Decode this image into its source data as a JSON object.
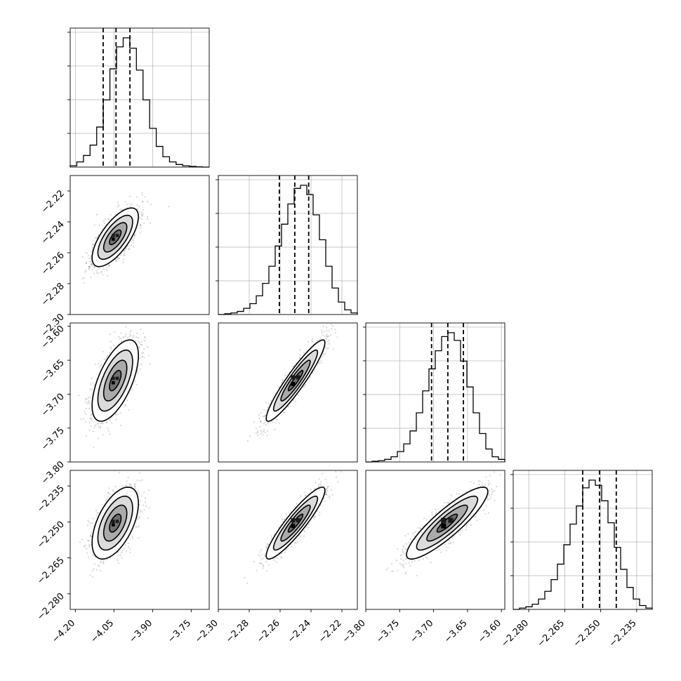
{
  "chart_data": {
    "type": "corner",
    "grid": true,
    "parameters": [
      {
        "range": [
          -4.22,
          -3.68
        ],
        "ticks": [
          -4.2,
          -4.05,
          -3.9,
          -3.75
        ],
        "tick_labels": [
          "−4.20",
          "−4.05",
          "−3.90",
          "−3.75"
        ],
        "quantiles": [
          -4.092,
          -4.042,
          -3.988
        ],
        "hist_bins": [
          0.01,
          0.04,
          0.09,
          0.17,
          0.31,
          0.52,
          0.76,
          0.93,
          1.0,
          0.92,
          0.75,
          0.52,
          0.3,
          0.16,
          0.08,
          0.04,
          0.02,
          0.01,
          0.005,
          0.002,
          0.0
        ]
      },
      {
        "range": [
          -2.3,
          -2.21
        ],
        "ticks": [
          -2.3,
          -2.28,
          -2.26,
          -2.24,
          -2.22
        ],
        "tick_labels": [
          "−2.30",
          "−2.28",
          "−2.26",
          "−2.24",
          "−2.22"
        ],
        "quantiles": [
          -2.2605,
          -2.2505,
          -2.2415
        ],
        "hist_bins": [
          0.0,
          0.005,
          0.01,
          0.02,
          0.04,
          0.07,
          0.12,
          0.2,
          0.31,
          0.44,
          0.58,
          0.71,
          0.81,
          0.83,
          0.77,
          0.64,
          0.48,
          0.31,
          0.17,
          0.08,
          0.03,
          0.01
        ]
      },
      {
        "range": [
          -3.8,
          -3.595
        ],
        "ticks": [
          -3.8,
          -3.75,
          -3.7,
          -3.65,
          -3.6
        ],
        "tick_labels": [
          "−3.80",
          "−3.75",
          "−3.70",
          "−3.65",
          "−3.60"
        ],
        "quantiles": [
          -3.703,
          -3.679,
          -3.656
        ],
        "hist_bins": [
          0.0,
          0.005,
          0.01,
          0.02,
          0.04,
          0.08,
          0.14,
          0.24,
          0.38,
          0.55,
          0.72,
          0.86,
          0.97,
          1.0,
          0.94,
          0.78,
          0.58,
          0.38,
          0.22,
          0.1,
          0.04,
          0.02
        ]
      },
      {
        "range": [
          -2.2865,
          -2.2285
        ],
        "ticks": [
          -2.28,
          -2.265,
          -2.25,
          -2.235
        ],
        "tick_labels": [
          "−2.280",
          "−2.265",
          "−2.250",
          "−2.235"
        ],
        "quantiles": [
          -2.2575,
          -2.2505,
          -2.2435
        ],
        "hist_bins": [
          0.0,
          0.01,
          0.02,
          0.04,
          0.08,
          0.14,
          0.23,
          0.35,
          0.5,
          0.66,
          0.8,
          0.94,
          1.0,
          0.96,
          0.84,
          0.67,
          0.48,
          0.31,
          0.17,
          0.08,
          0.03,
          0.01
        ]
      }
    ],
    "left_tick_labels": {
      "row1": [
        "−2.22",
        "−2.24",
        "−2.26",
        "−2.28",
        "−2.30"
      ],
      "row2": [
        "−3.60",
        "−3.65",
        "−3.70",
        "−3.75",
        "−3.80"
      ],
      "row3": [
        "−2.235",
        "−2.250",
        "−2.265",
        "−2.280"
      ]
    },
    "pairs": [
      {
        "row": 1,
        "col": 0,
        "center": [
          -4.045,
          -2.25
        ],
        "sigma": [
          0.045,
          0.0095
        ],
        "corr": 0.7,
        "seed": 11
      },
      {
        "row": 2,
        "col": 0,
        "center": [
          -4.045,
          -3.68
        ],
        "sigma": [
          0.045,
          0.03
        ],
        "corr": 0.62,
        "seed": 23
      },
      {
        "row": 2,
        "col": 1,
        "center": [
          -2.25,
          -3.68
        ],
        "sigma": [
          0.0095,
          0.03
        ],
        "corr": 0.93,
        "seed": 37
      },
      {
        "row": 3,
        "col": 0,
        "center": [
          -4.045,
          -2.2505
        ],
        "sigma": [
          0.045,
          0.0075
        ],
        "corr": 0.55,
        "seed": 41
      },
      {
        "row": 3,
        "col": 1,
        "center": [
          -2.25,
          -2.2505
        ],
        "sigma": [
          0.0095,
          0.0075
        ],
        "corr": 0.91,
        "seed": 53
      },
      {
        "row": 3,
        "col": 2,
        "center": [
          -3.68,
          -2.2505
        ],
        "sigma": [
          0.03,
          0.0075
        ],
        "corr": 0.88,
        "seed": 67
      }
    ],
    "contour_levels_sigma": [
      0.5,
      1.0,
      1.5,
      2.0
    ]
  }
}
